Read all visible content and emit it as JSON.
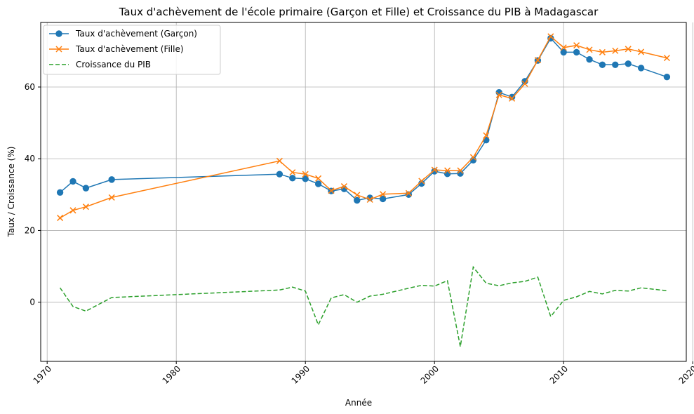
{
  "chart_data": {
    "type": "line",
    "title": "Taux d'achèvement de l'école primaire (Garçon et Fille) et Croissance du PIB à Madagascar",
    "xlabel": "Année",
    "ylabel": "Taux / Croissance (%)",
    "xlim": [
      1969.5,
      2019.5
    ],
    "ylim": [
      -16.5,
      78
    ],
    "xticks": [
      1970,
      1980,
      1990,
      2000,
      2010,
      2020
    ],
    "yticks": [
      0,
      20,
      40,
      60
    ],
    "grid": true,
    "legend_position": "top-left",
    "series": [
      {
        "name": "Taux d'achèvement (Garçon)",
        "color": "#1f77b4",
        "line_style": "solid",
        "marker": "circle",
        "x": [
          1971,
          1972,
          1973,
          1975,
          1988,
          1989,
          1990,
          1991,
          1992,
          1993,
          1994,
          1995,
          1996,
          1998,
          1999,
          2000,
          2001,
          2002,
          2003,
          2004,
          2005,
          2006,
          2007,
          2008,
          2009,
          2010,
          2011,
          2012,
          2013,
          2014,
          2015,
          2016,
          2018
        ],
        "y": [
          30.6,
          33.7,
          31.8,
          34.2,
          35.7,
          34.6,
          34.4,
          33.0,
          31.0,
          31.6,
          28.4,
          29.1,
          28.8,
          30.0,
          33.1,
          36.5,
          35.8,
          35.9,
          39.6,
          45.2,
          58.5,
          57.2,
          61.6,
          67.4,
          73.6,
          69.7,
          69.7,
          67.7,
          66.2,
          66.2,
          66.5,
          65.3,
          62.8
        ]
      },
      {
        "name": "Taux d'achèvement (Fille)",
        "color": "#ff7f0e",
        "line_style": "solid",
        "marker": "x",
        "x": [
          1971,
          1972,
          1973,
          1975,
          1988,
          1989,
          1990,
          1991,
          1992,
          1993,
          1994,
          1995,
          1996,
          1998,
          1999,
          2000,
          2001,
          2002,
          2003,
          2004,
          2005,
          2006,
          2007,
          2008,
          2009,
          2010,
          2011,
          2012,
          2013,
          2014,
          2015,
          2016,
          2018
        ],
        "y": [
          23.5,
          25.6,
          26.6,
          29.2,
          39.4,
          36.2,
          35.7,
          34.5,
          31.1,
          32.3,
          29.9,
          28.6,
          30.1,
          30.4,
          33.8,
          36.9,
          36.7,
          36.7,
          40.4,
          46.5,
          57.8,
          56.8,
          60.9,
          67.5,
          74.1,
          71.0,
          71.6,
          70.4,
          69.7,
          70.1,
          70.6,
          69.8,
          68.1
        ]
      },
      {
        "name": "Croissance du PIB",
        "color": "#2ca02c",
        "line_style": "dashed",
        "marker": "none",
        "x": [
          1971,
          1972,
          1973,
          1975,
          1988,
          1989,
          1990,
          1991,
          1992,
          1993,
          1994,
          1995,
          1996,
          1998,
          1999,
          2000,
          2001,
          2002,
          2003,
          2004,
          2005,
          2006,
          2007,
          2008,
          2009,
          2010,
          2011,
          2012,
          2013,
          2014,
          2015,
          2016,
          2018
        ],
        "y": [
          4.0,
          -1.2,
          -2.5,
          1.3,
          3.4,
          4.2,
          3.1,
          -6.3,
          1.2,
          2.1,
          0.0,
          1.7,
          2.2,
          3.9,
          4.7,
          4.5,
          6.0,
          -12.4,
          9.8,
          5.3,
          4.6,
          5.4,
          5.8,
          7.0,
          -4.0,
          0.5,
          1.5,
          3.0,
          2.3,
          3.3,
          3.1,
          4.0,
          3.2
        ]
      }
    ]
  }
}
